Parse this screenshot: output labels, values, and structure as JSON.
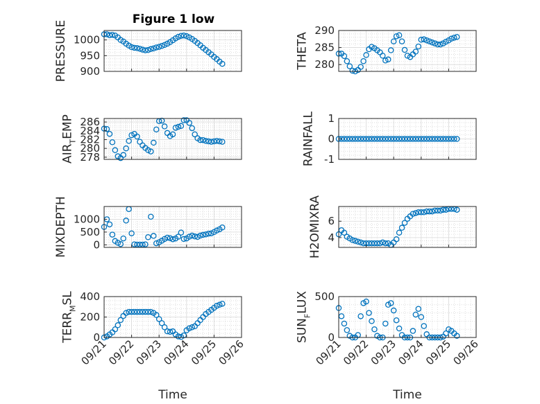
{
  "figure": {
    "title": "Figure 1 low"
  },
  "colors": {
    "marker": "#0072BD",
    "grid": "#c8c8c8",
    "axis": "#262626"
  },
  "chart_data": [
    {
      "type": "scatter",
      "ylabel": "PRESSURE",
      "yticks": [
        900,
        950,
        1000
      ],
      "ylim": [
        900,
        1030
      ],
      "xlim": [
        0,
        5
      ],
      "grid": true,
      "x": [
        0.0,
        0.1,
        0.2,
        0.3,
        0.4,
        0.5,
        0.6,
        0.7,
        0.8,
        0.9,
        1.0,
        1.1,
        1.2,
        1.3,
        1.4,
        1.5,
        1.6,
        1.7,
        1.8,
        1.9,
        2.0,
        2.1,
        2.2,
        2.3,
        2.4,
        2.5,
        2.6,
        2.7,
        2.8,
        2.9,
        3.0,
        3.1,
        3.2,
        3.3,
        3.4,
        3.5,
        3.6,
        3.7,
        3.8,
        3.9,
        4.0,
        4.1,
        4.2,
        4.3
      ],
      "y": [
        1018,
        1018,
        1015,
        1016,
        1014,
        1008,
        1000,
        995,
        988,
        982,
        977,
        975,
        974,
        972,
        969,
        967,
        968,
        971,
        973,
        976,
        978,
        981,
        984,
        988,
        993,
        999,
        1005,
        1010,
        1013,
        1014,
        1012,
        1008,
        1003,
        997,
        990,
        983,
        975,
        968,
        961,
        954,
        946,
        939,
        931,
        924
      ]
    },
    {
      "type": "scatter",
      "ylabel": "THETA",
      "yticks": [
        280,
        285,
        290
      ],
      "ylim": [
        278,
        290
      ],
      "xlim": [
        0,
        5
      ],
      "grid": true,
      "x": [
        0.0,
        0.1,
        0.2,
        0.3,
        0.4,
        0.5,
        0.6,
        0.7,
        0.8,
        0.9,
        1.0,
        1.1,
        1.2,
        1.3,
        1.4,
        1.5,
        1.6,
        1.7,
        1.8,
        1.9,
        2.0,
        2.1,
        2.2,
        2.3,
        2.4,
        2.5,
        2.6,
        2.7,
        2.8,
        2.9,
        3.0,
        3.1,
        3.2,
        3.3,
        3.4,
        3.5,
        3.6,
        3.7,
        3.8,
        3.9,
        4.0,
        4.1,
        4.2,
        4.3
      ],
      "y": [
        283.2,
        283.2,
        282.5,
        281.0,
        279.5,
        278.2,
        278.0,
        278.4,
        279.3,
        281.0,
        282.8,
        284.5,
        285.2,
        284.8,
        284.2,
        283.6,
        282.6,
        281.2,
        281.5,
        284.2,
        286.8,
        288.3,
        288.6,
        286.8,
        284.3,
        282.6,
        282.2,
        283.0,
        283.8,
        285.3,
        287.3,
        287.4,
        287.1,
        286.8,
        286.5,
        286.2,
        285.9,
        285.9,
        286.2,
        286.7,
        287.1,
        287.6,
        287.9,
        288.1
      ]
    },
    {
      "type": "scatter",
      "ylabel": "AIR_TEMP",
      "yticks": [
        278,
        280,
        282,
        284,
        286
      ],
      "ylim": [
        277.5,
        286.8
      ],
      "xlim": [
        0,
        5
      ],
      "grid": true,
      "x": [
        0.0,
        0.1,
        0.2,
        0.3,
        0.4,
        0.5,
        0.6,
        0.7,
        0.8,
        0.9,
        1.0,
        1.1,
        1.2,
        1.3,
        1.4,
        1.5,
        1.6,
        1.7,
        1.8,
        1.9,
        2.0,
        2.1,
        2.2,
        2.3,
        2.4,
        2.5,
        2.6,
        2.7,
        2.8,
        2.9,
        3.0,
        3.1,
        3.2,
        3.3,
        3.4,
        3.5,
        3.6,
        3.7,
        3.8,
        3.9,
        4.0,
        4.1,
        4.2,
        4.3
      ],
      "y": [
        284.5,
        284.4,
        283.3,
        281.4,
        279.6,
        278.2,
        277.8,
        278.5,
        280.0,
        281.7,
        283.0,
        283.3,
        282.7,
        281.5,
        280.7,
        280.1,
        279.6,
        279.3,
        281.3,
        284.3,
        286.2,
        286.3,
        285.0,
        283.5,
        282.8,
        283.2,
        284.7,
        284.9,
        285.1,
        286.4,
        286.4,
        285.8,
        284.6,
        283.2,
        282.3,
        281.9,
        281.9,
        281.7,
        281.6,
        281.5,
        281.6,
        281.7,
        281.6,
        281.5
      ]
    },
    {
      "type": "scatter",
      "ylabel": "RAINFALL",
      "yticks": [
        -1,
        0,
        1
      ],
      "ylim": [
        -1,
        1
      ],
      "xlim": [
        0,
        5
      ],
      "grid": true,
      "x": [
        0.0,
        0.1,
        0.2,
        0.3,
        0.4,
        0.5,
        0.6,
        0.7,
        0.8,
        0.9,
        1.0,
        1.1,
        1.2,
        1.3,
        1.4,
        1.5,
        1.6,
        1.7,
        1.8,
        1.9,
        2.0,
        2.1,
        2.2,
        2.3,
        2.4,
        2.5,
        2.6,
        2.7,
        2.8,
        2.9,
        3.0,
        3.1,
        3.2,
        3.3,
        3.4,
        3.5,
        3.6,
        3.7,
        3.8,
        3.9,
        4.0,
        4.1,
        4.2,
        4.3
      ],
      "y": [
        0,
        0,
        0,
        0,
        0,
        0,
        0,
        0,
        0,
        0,
        0,
        0,
        0,
        0,
        0,
        0,
        0,
        0,
        0,
        0,
        0,
        0,
        0,
        0,
        0,
        0,
        0,
        0,
        0,
        0,
        0,
        0,
        0,
        0,
        0,
        0,
        0,
        0,
        0,
        0,
        0,
        0,
        0,
        0
      ]
    },
    {
      "type": "scatter",
      "ylabel": "MIXDEPTH",
      "yticks": [
        0,
        500,
        1000
      ],
      "ylim": [
        -100,
        1500
      ],
      "xlim": [
        0,
        5
      ],
      "grid": true,
      "x": [
        0.0,
        0.1,
        0.2,
        0.3,
        0.4,
        0.5,
        0.6,
        0.7,
        0.8,
        0.9,
        1.0,
        1.1,
        1.2,
        1.3,
        1.4,
        1.5,
        1.6,
        1.7,
        1.8,
        1.9,
        2.0,
        2.1,
        2.2,
        2.3,
        2.4,
        2.5,
        2.6,
        2.7,
        2.8,
        2.9,
        3.0,
        3.1,
        3.2,
        3.3,
        3.4,
        3.5,
        3.6,
        3.7,
        3.8,
        3.9,
        4.0,
        4.1,
        4.2,
        4.3
      ],
      "y": [
        700,
        1000,
        800,
        400,
        150,
        80,
        30,
        250,
        950,
        1400,
        450,
        20,
        10,
        10,
        10,
        20,
        300,
        1100,
        350,
        60,
        100,
        160,
        230,
        280,
        260,
        220,
        250,
        320,
        480,
        230,
        250,
        320,
        360,
        330,
        310,
        360,
        390,
        410,
        440,
        450,
        500,
        560,
        610,
        680
      ]
    },
    {
      "type": "scatter",
      "ylabel": "H2OMIXRA",
      "yticks": [
        4,
        6
      ],
      "ylim": [
        2.8,
        7.8
      ],
      "xlim": [
        0,
        5
      ],
      "grid": true,
      "x": [
        0.0,
        0.1,
        0.2,
        0.3,
        0.4,
        0.5,
        0.6,
        0.7,
        0.8,
        0.9,
        1.0,
        1.1,
        1.2,
        1.3,
        1.4,
        1.5,
        1.6,
        1.7,
        1.8,
        1.9,
        2.0,
        2.1,
        2.2,
        2.3,
        2.4,
        2.5,
        2.6,
        2.7,
        2.8,
        2.9,
        3.0,
        3.1,
        3.2,
        3.3,
        3.4,
        3.5,
        3.6,
        3.7,
        3.8,
        3.9,
        4.0,
        4.1,
        4.2,
        4.3
      ],
      "y": [
        4.4,
        4.9,
        4.6,
        4.1,
        3.9,
        3.7,
        3.6,
        3.5,
        3.4,
        3.3,
        3.3,
        3.3,
        3.3,
        3.3,
        3.3,
        3.3,
        3.4,
        3.3,
        3.3,
        3.1,
        3.4,
        3.8,
        4.6,
        5.2,
        5.8,
        6.3,
        6.6,
        6.9,
        7.0,
        7.1,
        7.1,
        7.1,
        7.2,
        7.2,
        7.2,
        7.3,
        7.3,
        7.3,
        7.4,
        7.4,
        7.5,
        7.5,
        7.5,
        7.4
      ]
    },
    {
      "type": "scatter",
      "ylabel": "TERR_MSL",
      "xlabel": "Time",
      "yticks": [
        0,
        200,
        400
      ],
      "ylim": [
        0,
        400
      ],
      "xlim": [
        0,
        5
      ],
      "grid": true,
      "xticks": [
        "09/21",
        "09/22",
        "09/23",
        "09/24",
        "09/25",
        "09/26"
      ],
      "x": [
        0.0,
        0.1,
        0.2,
        0.3,
        0.4,
        0.5,
        0.6,
        0.7,
        0.8,
        0.9,
        1.0,
        1.1,
        1.2,
        1.3,
        1.4,
        1.5,
        1.6,
        1.7,
        1.8,
        1.9,
        2.0,
        2.1,
        2.2,
        2.3,
        2.4,
        2.5,
        2.6,
        2.7,
        2.8,
        2.9,
        3.0,
        3.1,
        3.2,
        3.3,
        3.4,
        3.5,
        3.6,
        3.7,
        3.8,
        3.9,
        4.0,
        4.1,
        4.2,
        4.3
      ],
      "y": [
        0,
        10,
        30,
        50,
        80,
        120,
        170,
        210,
        240,
        250,
        250,
        250,
        250,
        250,
        250,
        250,
        250,
        250,
        240,
        220,
        180,
        140,
        100,
        60,
        55,
        60,
        30,
        10,
        5,
        20,
        70,
        90,
        100,
        110,
        140,
        170,
        200,
        230,
        250,
        270,
        290,
        310,
        320,
        330
      ]
    },
    {
      "type": "scatter",
      "ylabel": "SUN_FLUX",
      "xlabel": "Time",
      "yticks": [
        0,
        500
      ],
      "ylim": [
        0,
        500
      ],
      "xlim": [
        0,
        5
      ],
      "grid": true,
      "xticks": [
        "09/21",
        "09/22",
        "09/23",
        "09/24",
        "09/25",
        "09/26"
      ],
      "x": [
        0.0,
        0.1,
        0.2,
        0.3,
        0.4,
        0.5,
        0.6,
        0.7,
        0.8,
        0.9,
        1.0,
        1.1,
        1.2,
        1.3,
        1.4,
        1.5,
        1.6,
        1.7,
        1.8,
        1.9,
        2.0,
        2.1,
        2.2,
        2.3,
        2.4,
        2.5,
        2.6,
        2.7,
        2.8,
        2.9,
        3.0,
        3.1,
        3.2,
        3.3,
        3.4,
        3.5,
        3.6,
        3.7,
        3.8,
        3.9,
        4.0,
        4.1,
        4.2,
        4.3
      ],
      "y": [
        360,
        260,
        170,
        90,
        20,
        0,
        0,
        30,
        260,
        420,
        440,
        300,
        200,
        100,
        20,
        0,
        0,
        170,
        400,
        420,
        330,
        210,
        110,
        30,
        0,
        0,
        0,
        80,
        280,
        350,
        250,
        140,
        40,
        0,
        0,
        0,
        0,
        0,
        10,
        50,
        100,
        80,
        50,
        20
      ]
    }
  ]
}
